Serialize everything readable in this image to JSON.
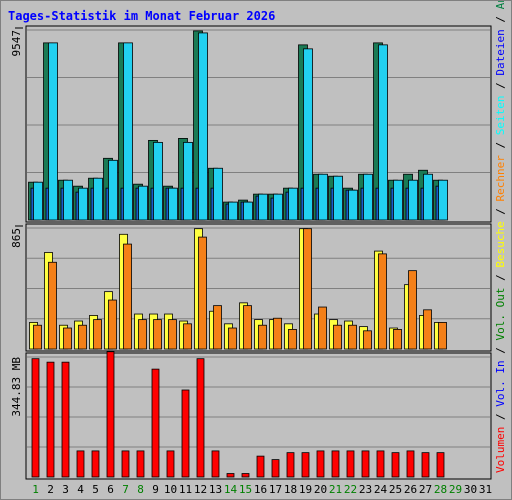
{
  "chart_data": [
    {
      "type": "bar",
      "title": "Tages-Statistik im Monat Februar 2026",
      "ylabel": "9547",
      "ylim": [
        0,
        9547
      ],
      "categories": [
        "1",
        "2",
        "3",
        "4",
        "5",
        "6",
        "7",
        "8",
        "9",
        "10",
        "11",
        "12",
        "13",
        "14",
        "15",
        "16",
        "17",
        "18",
        "19",
        "20",
        "21",
        "22",
        "23",
        "24",
        "25",
        "26",
        "27",
        "28",
        "29",
        "30",
        "31"
      ],
      "weekend_days": [
        "1",
        "7",
        "8",
        "14",
        "15",
        "21",
        "22",
        "28",
        "29"
      ],
      "series": [
        {
          "name": "Anfragen",
          "color": "#1a7a55",
          "values": [
            1900,
            8900,
            2000,
            1700,
            2100,
            3100,
            8900,
            1800,
            4000,
            1700,
            4100,
            9500,
            2600,
            900,
            1000,
            1300,
            1300,
            1600,
            8800,
            2300,
            2200,
            1600,
            2300,
            8900,
            2000,
            2300,
            2500,
            2000,
            null,
            null,
            null
          ]
        },
        {
          "name": "Dateien",
          "color": "#1a5ec8",
          "values": [
            1600,
            1600,
            1600,
            1400,
            1600,
            1600,
            1600,
            1600,
            1600,
            1600,
            1600,
            1600,
            1600,
            800,
            900,
            1200,
            1100,
            1400,
            1600,
            1600,
            1600,
            1500,
            1600,
            1600,
            1600,
            1600,
            1600,
            1700,
            null,
            null,
            null
          ]
        },
        {
          "name": "Seiten",
          "color": "#22d0f0",
          "values": [
            1900,
            8900,
            2000,
            1600,
            2100,
            3000,
            8900,
            1700,
            3900,
            1600,
            3900,
            9400,
            2600,
            900,
            900,
            1300,
            1300,
            1600,
            8600,
            2300,
            2200,
            1500,
            2300,
            8800,
            2000,
            2000,
            2300,
            2000,
            null,
            null,
            null
          ]
        }
      ]
    },
    {
      "type": "bar",
      "ylabel": "865",
      "ylim": [
        0,
        865
      ],
      "categories": [
        "1",
        "2",
        "3",
        "4",
        "5",
        "6",
        "7",
        "8",
        "9",
        "10",
        "11",
        "12",
        "13",
        "14",
        "15",
        "16",
        "17",
        "18",
        "19",
        "20",
        "21",
        "22",
        "23",
        "24",
        "25",
        "26",
        "27",
        "28",
        "29",
        "30",
        "31"
      ],
      "series": [
        {
          "name": "Besuche",
          "color": "#ffff40",
          "values": [
            190,
            690,
            170,
            200,
            240,
            410,
            820,
            250,
            250,
            250,
            200,
            860,
            270,
            180,
            330,
            210,
            210,
            180,
            860,
            250,
            210,
            200,
            160,
            700,
            150,
            460,
            240,
            190,
            null,
            null,
            null
          ]
        },
        {
          "name": "Rechner",
          "color": "#f48018",
          "values": [
            170,
            620,
            150,
            170,
            210,
            350,
            750,
            210,
            210,
            210,
            180,
            800,
            310,
            150,
            310,
            170,
            220,
            140,
            860,
            300,
            170,
            170,
            130,
            680,
            140,
            560,
            280,
            190,
            null,
            null,
            null
          ]
        }
      ]
    },
    {
      "type": "bar",
      "ylabel": "344.83 MB",
      "ylim": [
        0,
        344.83
      ],
      "categories": [
        "1",
        "2",
        "3",
        "4",
        "5",
        "6",
        "7",
        "8",
        "9",
        "10",
        "11",
        "12",
        "13",
        "14",
        "15",
        "16",
        "17",
        "18",
        "19",
        "20",
        "21",
        "22",
        "23",
        "24",
        "25",
        "26",
        "27",
        "28",
        "29",
        "30",
        "31"
      ],
      "series": [
        {
          "name": "Volumen",
          "color": "#ff0000",
          "values": [
            340,
            330,
            330,
            75,
            75,
            360,
            75,
            75,
            310,
            75,
            250,
            340,
            75,
            10,
            10,
            60,
            50,
            70,
            70,
            75,
            75,
            75,
            75,
            75,
            70,
            75,
            70,
            70,
            null,
            null,
            null
          ]
        }
      ]
    }
  ],
  "right_legend": [
    {
      "text": "Volumen",
      "color": "#ff0000"
    },
    {
      "text": " / ",
      "color": "#000000"
    },
    {
      "text": "Vol. In",
      "color": "#0000ff"
    },
    {
      "text": " / ",
      "color": "#000000"
    },
    {
      "text": "Vol. Out",
      "color": "#008000"
    },
    {
      "text": " / ",
      "color": "#000000"
    },
    {
      "text": "Besuche",
      "color": "#ffff00"
    },
    {
      "text": " / ",
      "color": "#000000"
    },
    {
      "text": "Rechner",
      "color": "#ff8000"
    },
    {
      "text": " / ",
      "color": "#000000"
    },
    {
      "text": "Seiten",
      "color": "#00ffff"
    },
    {
      "text": " / ",
      "color": "#000000"
    },
    {
      "text": "Dateien",
      "color": "#0000ff"
    },
    {
      "text": " / ",
      "color": "#000000"
    },
    {
      "text": "Anfragen",
      "color": "#008040"
    }
  ],
  "colors": {
    "background": "#c0c0c0",
    "title": "#0000ff",
    "weekday_label": "#000000",
    "weekend_label": "#008000",
    "grid": "#808080"
  }
}
